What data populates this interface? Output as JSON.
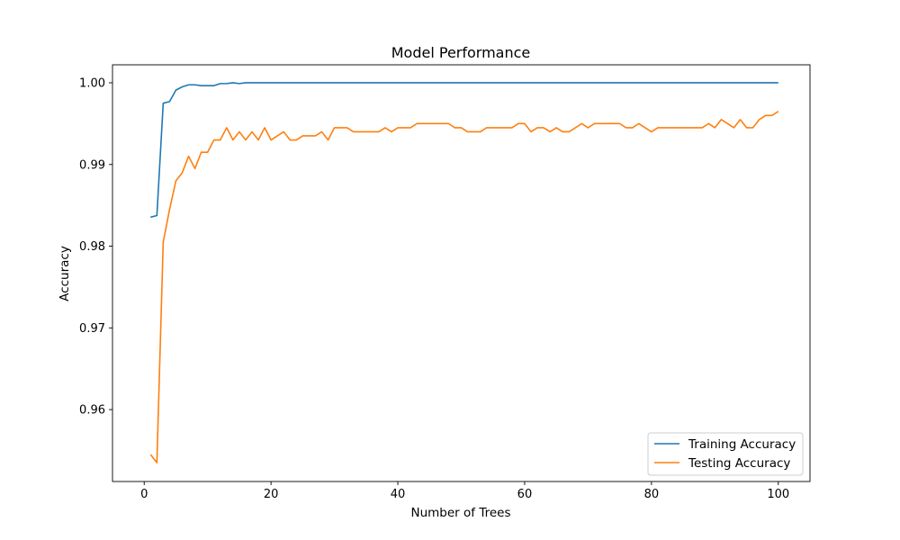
{
  "chart_data": {
    "type": "line",
    "title": "Model Performance",
    "xlabel": "Number of Trees",
    "ylabel": "Accuracy",
    "xlim": [
      -5,
      105
    ],
    "ylim": [
      0.9512,
      1.0022
    ],
    "xticks": [
      0,
      20,
      40,
      60,
      80,
      100
    ],
    "yticks": [
      0.96,
      0.97,
      0.98,
      0.99,
      1.0
    ],
    "ytick_labels": [
      "0.96",
      "0.97",
      "0.98",
      "0.99",
      "1.00"
    ],
    "grid": false,
    "legend_position": "lower-right",
    "x": [
      1,
      2,
      3,
      4,
      5,
      6,
      7,
      8,
      9,
      10,
      11,
      12,
      13,
      14,
      15,
      16,
      17,
      18,
      19,
      20,
      21,
      22,
      23,
      24,
      25,
      26,
      27,
      28,
      29,
      30,
      31,
      32,
      33,
      34,
      35,
      36,
      37,
      38,
      39,
      40,
      41,
      42,
      43,
      44,
      45,
      46,
      47,
      48,
      49,
      50,
      51,
      52,
      53,
      54,
      55,
      56,
      57,
      58,
      59,
      60,
      61,
      62,
      63,
      64,
      65,
      66,
      67,
      68,
      69,
      70,
      71,
      72,
      73,
      74,
      75,
      76,
      77,
      78,
      79,
      80,
      81,
      82,
      83,
      84,
      85,
      86,
      87,
      88,
      89,
      90,
      91,
      92,
      93,
      94,
      95,
      96,
      97,
      98,
      99,
      100
    ],
    "series": [
      {
        "name": "Training Accuracy",
        "color": "#1f77b4",
        "values": [
          0.98355,
          0.98375,
          0.9975,
          0.9977,
          0.9991,
          0.9995,
          0.99975,
          0.99975,
          0.99965,
          0.99965,
          0.99965,
          0.9999,
          0.9999,
          1.0,
          0.9999,
          1.0,
          1.0,
          1.0,
          1.0,
          1.0,
          1.0,
          1.0,
          1.0,
          1.0,
          1.0,
          1.0,
          1.0,
          1.0,
          1.0,
          1.0,
          1.0,
          1.0,
          1.0,
          1.0,
          1.0,
          1.0,
          1.0,
          1.0,
          1.0,
          1.0,
          1.0,
          1.0,
          1.0,
          1.0,
          1.0,
          1.0,
          1.0,
          1.0,
          1.0,
          1.0,
          1.0,
          1.0,
          1.0,
          1.0,
          1.0,
          1.0,
          1.0,
          1.0,
          1.0,
          1.0,
          1.0,
          1.0,
          1.0,
          1.0,
          1.0,
          1.0,
          1.0,
          1.0,
          1.0,
          1.0,
          1.0,
          1.0,
          1.0,
          1.0,
          1.0,
          1.0,
          1.0,
          1.0,
          1.0,
          1.0,
          1.0,
          1.0,
          1.0,
          1.0,
          1.0,
          1.0,
          1.0,
          1.0,
          1.0,
          1.0,
          1.0,
          1.0,
          1.0,
          1.0,
          1.0,
          1.0,
          1.0,
          1.0,
          1.0,
          1.0
        ]
      },
      {
        "name": "Testing Accuracy",
        "color": "#ff7f0e",
        "values": [
          0.9545,
          0.9535,
          0.9805,
          0.9845,
          0.988,
          0.989,
          0.991,
          0.9895,
          0.9915,
          0.9915,
          0.993,
          0.993,
          0.9945,
          0.993,
          0.994,
          0.993,
          0.994,
          0.993,
          0.9945,
          0.993,
          0.9935,
          0.994,
          0.993,
          0.993,
          0.9935,
          0.9935,
          0.9935,
          0.994,
          0.993,
          0.9945,
          0.9945,
          0.9945,
          0.994,
          0.994,
          0.994,
          0.994,
          0.994,
          0.9945,
          0.994,
          0.9945,
          0.9945,
          0.9945,
          0.995,
          0.995,
          0.995,
          0.995,
          0.995,
          0.995,
          0.9945,
          0.9945,
          0.994,
          0.994,
          0.994,
          0.9945,
          0.9945,
          0.9945,
          0.9945,
          0.9945,
          0.995,
          0.995,
          0.994,
          0.9945,
          0.9945,
          0.994,
          0.9945,
          0.994,
          0.994,
          0.9945,
          0.995,
          0.9945,
          0.995,
          0.995,
          0.995,
          0.995,
          0.995,
          0.9945,
          0.9945,
          0.995,
          0.9945,
          0.994,
          0.9945,
          0.9945,
          0.9945,
          0.9945,
          0.9945,
          0.9945,
          0.9945,
          0.9945,
          0.995,
          0.9945,
          0.9955,
          0.995,
          0.9945,
          0.9955,
          0.9945,
          0.9945,
          0.9955,
          0.996,
          0.996,
          0.9965
        ]
      }
    ]
  }
}
